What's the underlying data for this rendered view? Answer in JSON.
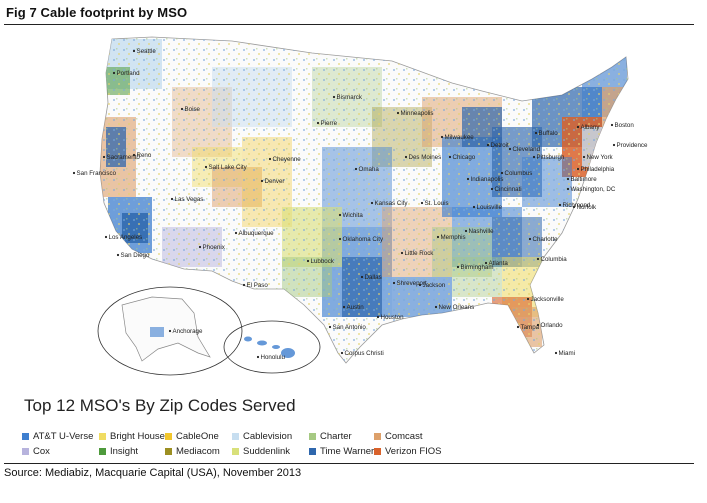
{
  "figure": {
    "title": "Fig 7    Cable footprint by MSO",
    "source": "Source: Mediabiz, Macquarie Capital (USA), November 2013"
  },
  "map": {
    "cities": [
      {
        "id": "seattle",
        "name": "Seattle"
      },
      {
        "id": "portland",
        "name": "Portland"
      },
      {
        "id": "boise",
        "name": "Boise"
      },
      {
        "id": "sacramento",
        "name": "Sacramento"
      },
      {
        "id": "reno",
        "name": "Reno"
      },
      {
        "id": "san-francisco",
        "name": "San Francisco"
      },
      {
        "id": "las-vegas",
        "name": "Las Vegas"
      },
      {
        "id": "los-angeles",
        "name": "Los Angeles"
      },
      {
        "id": "san-diego",
        "name": "San Diego"
      },
      {
        "id": "phoenix",
        "name": "Phoenix"
      },
      {
        "id": "salt-lake-city",
        "name": "Salt Lake City"
      },
      {
        "id": "cheyenne",
        "name": "Cheyenne"
      },
      {
        "id": "denver",
        "name": "Denver"
      },
      {
        "id": "albuquerque",
        "name": "Albuquerque"
      },
      {
        "id": "el-paso",
        "name": "El Paso"
      },
      {
        "id": "bismarck",
        "name": "Bismarck"
      },
      {
        "id": "pierre",
        "name": "Pierre"
      },
      {
        "id": "minneapolis",
        "name": "Minneapolis"
      },
      {
        "id": "des-moines",
        "name": "Des Moines"
      },
      {
        "id": "omaha",
        "name": "Omaha"
      },
      {
        "id": "kansas-city",
        "name": "Kansas City"
      },
      {
        "id": "wichita",
        "name": "Wichita"
      },
      {
        "id": "oklahoma-city",
        "name": "Oklahoma City"
      },
      {
        "id": "lubbock",
        "name": "Lubbock"
      },
      {
        "id": "dallas",
        "name": "Dallas"
      },
      {
        "id": "austin",
        "name": "Austin"
      },
      {
        "id": "san-antonio",
        "name": "San Antonio"
      },
      {
        "id": "houston",
        "name": "Houston"
      },
      {
        "id": "corpus-christi",
        "name": "Corpus Christi"
      },
      {
        "id": "shreveport",
        "name": "Shreveport"
      },
      {
        "id": "little-rock",
        "name": "Little Rock"
      },
      {
        "id": "memphis",
        "name": "Memphis"
      },
      {
        "id": "new-orleans",
        "name": "New Orleans"
      },
      {
        "id": "jackson",
        "name": "Jackson"
      },
      {
        "id": "birmingham",
        "name": "Birmingham"
      },
      {
        "id": "atlanta",
        "name": "Atlanta"
      },
      {
        "id": "nashville",
        "name": "Nashville"
      },
      {
        "id": "louisville",
        "name": "Louisville"
      },
      {
        "id": "st-louis",
        "name": "St. Louis"
      },
      {
        "id": "chicago",
        "name": "Chicago"
      },
      {
        "id": "milwaukee",
        "name": "Milwaukee"
      },
      {
        "id": "detroit",
        "name": "Detroit"
      },
      {
        "id": "cleveland",
        "name": "Cleveland"
      },
      {
        "id": "indianapolis",
        "name": "Indianapolis"
      },
      {
        "id": "columbus",
        "name": "Columbus"
      },
      {
        "id": "cincinnati",
        "name": "Cincinnati"
      },
      {
        "id": "pittsburgh",
        "name": "Pittsburgh"
      },
      {
        "id": "buffalo",
        "name": "Buffalo"
      },
      {
        "id": "albany",
        "name": "Albany"
      },
      {
        "id": "boston",
        "name": "Boston"
      },
      {
        "id": "providence",
        "name": "Providence"
      },
      {
        "id": "new-york",
        "name": "New York"
      },
      {
        "id": "philadelphia",
        "name": "Philadelphia"
      },
      {
        "id": "baltimore",
        "name": "Baltimore"
      },
      {
        "id": "washington-dc",
        "name": "Washington, DC"
      },
      {
        "id": "richmond",
        "name": "Richmond"
      },
      {
        "id": "norfolk",
        "name": "Norfolk"
      },
      {
        "id": "charlotte",
        "name": "Charlotte"
      },
      {
        "id": "columbia",
        "name": "Columbia"
      },
      {
        "id": "jacksonville",
        "name": "Jacksonville"
      },
      {
        "id": "orlando",
        "name": "Orlando"
      },
      {
        "id": "tampa",
        "name": "Tampa"
      },
      {
        "id": "miami",
        "name": "Miami"
      },
      {
        "id": "anchorage",
        "name": "Anchorage"
      },
      {
        "id": "honolulu",
        "name": "Honolulu"
      }
    ]
  },
  "legend": {
    "title": "Top 12 MSO's By Zip Codes Served",
    "items": [
      {
        "label": "AT&T U-Verse",
        "color": "#3f7fcf"
      },
      {
        "label": "Cox",
        "color": "#b7b3dd"
      },
      {
        "label": "Bright House",
        "color": "#f0dc62"
      },
      {
        "label": "Insight",
        "color": "#4e9a3c"
      },
      {
        "label": "CableOne",
        "color": "#f2c62c"
      },
      {
        "label": "Mediacom",
        "color": "#9c8f22"
      },
      {
        "label": "Cablevision",
        "color": "#c7def0"
      },
      {
        "label": "Suddenlink",
        "color": "#d8e07a"
      },
      {
        "label": "Charter",
        "color": "#a6c983"
      },
      {
        "label": "Time Warner",
        "color": "#2f67ad"
      },
      {
        "label": "Comcast",
        "color": "#dda06a"
      },
      {
        "label": "Verizon FIOS",
        "color": "#d9622b"
      }
    ]
  }
}
